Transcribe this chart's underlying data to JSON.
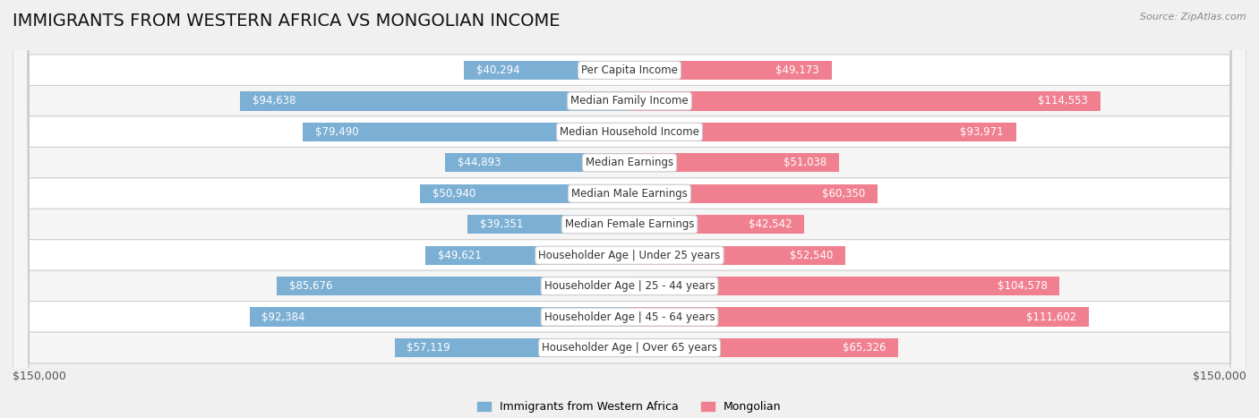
{
  "title": "IMMIGRANTS FROM WESTERN AFRICA VS MONGOLIAN INCOME",
  "source": "Source: ZipAtlas.com",
  "categories": [
    "Per Capita Income",
    "Median Family Income",
    "Median Household Income",
    "Median Earnings",
    "Median Male Earnings",
    "Median Female Earnings",
    "Householder Age | Under 25 years",
    "Householder Age | 25 - 44 years",
    "Householder Age | 45 - 64 years",
    "Householder Age | Over 65 years"
  ],
  "left_values": [
    40294,
    94638,
    79490,
    44893,
    50940,
    39351,
    49621,
    85676,
    92384,
    57119
  ],
  "right_values": [
    49173,
    114553,
    93971,
    51038,
    60350,
    42542,
    52540,
    104578,
    111602,
    65326
  ],
  "left_labels": [
    "$40,294",
    "$94,638",
    "$79,490",
    "$44,893",
    "$50,940",
    "$39,351",
    "$49,621",
    "$85,676",
    "$92,384",
    "$57,119"
  ],
  "right_labels": [
    "$49,173",
    "$114,553",
    "$93,971",
    "$51,038",
    "$60,350",
    "$42,542",
    "$52,540",
    "$104,578",
    "$111,602",
    "$65,326"
  ],
  "left_color": "#7bafd4",
  "right_color": "#f08090",
  "left_label_color_inside": "#ffffff",
  "left_label_color_outside": "#444444",
  "right_label_color_inside": "#ffffff",
  "right_label_color_outside": "#444444",
  "background_color": "#f0f0f0",
  "row_bg_odd": "#ffffff",
  "row_bg_even": "#f5f5f5",
  "max_value": 150000,
  "legend_left": "Immigrants from Western Africa",
  "legend_right": "Mongolian",
  "title_fontsize": 14,
  "label_fontsize": 8.5,
  "category_fontsize": 8.5,
  "axis_label_left": "$150,000",
  "axis_label_right": "$150,000",
  "inside_threshold": 30000
}
